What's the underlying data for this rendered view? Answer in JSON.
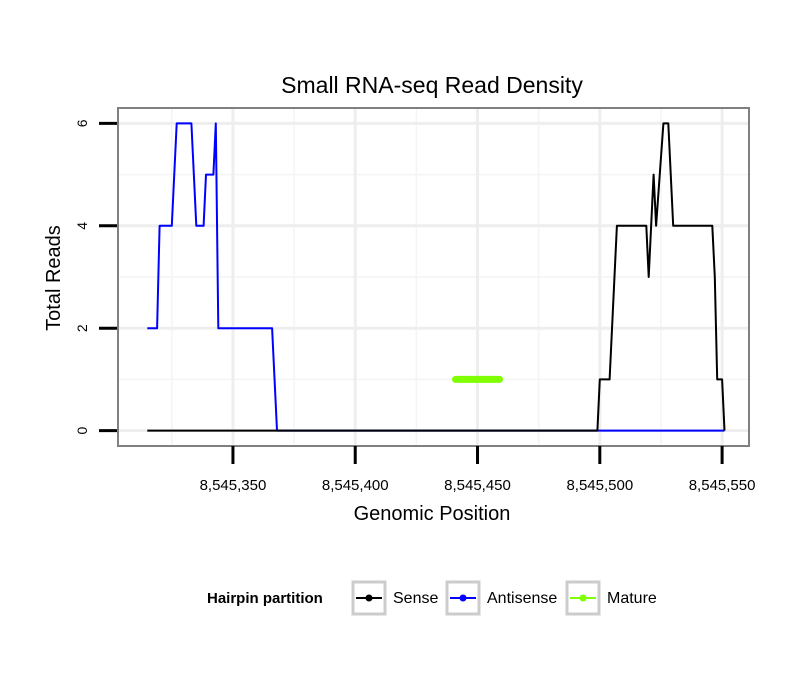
{
  "chart_data": {
    "type": "line",
    "title": "Small RNA-seq Read Density",
    "xlabel": "Genomic Position",
    "ylabel": "Total Reads",
    "xlim": [
      8545303,
      8545561
    ],
    "ylim": [
      -0.3,
      6.3
    ],
    "x_ticks": [
      {
        "value": 8545350,
        "label": "8,545,350"
      },
      {
        "value": 8545400,
        "label": "8,545,400"
      },
      {
        "value": 8545450,
        "label": "8,545,450"
      },
      {
        "value": 8545500,
        "label": "8,545,500"
      },
      {
        "value": 8545550,
        "label": "8,545,550"
      }
    ],
    "y_ticks": [
      {
        "value": 0,
        "label": "0"
      },
      {
        "value": 2,
        "label": "2"
      },
      {
        "value": 4,
        "label": "4"
      },
      {
        "value": 6,
        "label": "6"
      }
    ],
    "x_minor_grid": [
      8545325,
      8545375,
      8545425,
      8545475,
      8545525
    ],
    "y_minor_grid": [
      1,
      3,
      5
    ],
    "grid": true,
    "legend_title": "Hairpin partition",
    "legend_position": "bottom",
    "series": [
      {
        "name": "Sense",
        "color": "#000000",
        "points": [
          [
            8545315,
            0
          ],
          [
            8545499,
            0
          ],
          [
            8545500,
            1
          ],
          [
            8545504,
            1
          ],
          [
            8545507,
            4
          ],
          [
            8545519,
            4
          ],
          [
            8545520,
            3
          ],
          [
            8545522,
            5
          ],
          [
            8545523,
            4
          ],
          [
            8545526,
            6
          ],
          [
            8545528,
            6
          ],
          [
            8545530,
            4
          ],
          [
            8545546,
            4
          ],
          [
            8545547,
            3
          ],
          [
            8545548,
            1
          ],
          [
            8545550,
            1
          ],
          [
            8545551,
            0
          ]
        ]
      },
      {
        "name": "Antisense",
        "color": "#0000ff",
        "points": [
          [
            8545315,
            2
          ],
          [
            8545319,
            2
          ],
          [
            8545320,
            4
          ],
          [
            8545325,
            4
          ],
          [
            8545327,
            6
          ],
          [
            8545333,
            6
          ],
          [
            8545335,
            4
          ],
          [
            8545338,
            4
          ],
          [
            8545339,
            5
          ],
          [
            8545342,
            5
          ],
          [
            8545343,
            6
          ],
          [
            8545344,
            2
          ],
          [
            8545366,
            2
          ],
          [
            8545368,
            0
          ],
          [
            8545551,
            0
          ]
        ]
      },
      {
        "name": "Mature",
        "color": "#7fff00",
        "points": [
          [
            8545441,
            1
          ],
          [
            8545459,
            1
          ]
        ]
      }
    ]
  }
}
